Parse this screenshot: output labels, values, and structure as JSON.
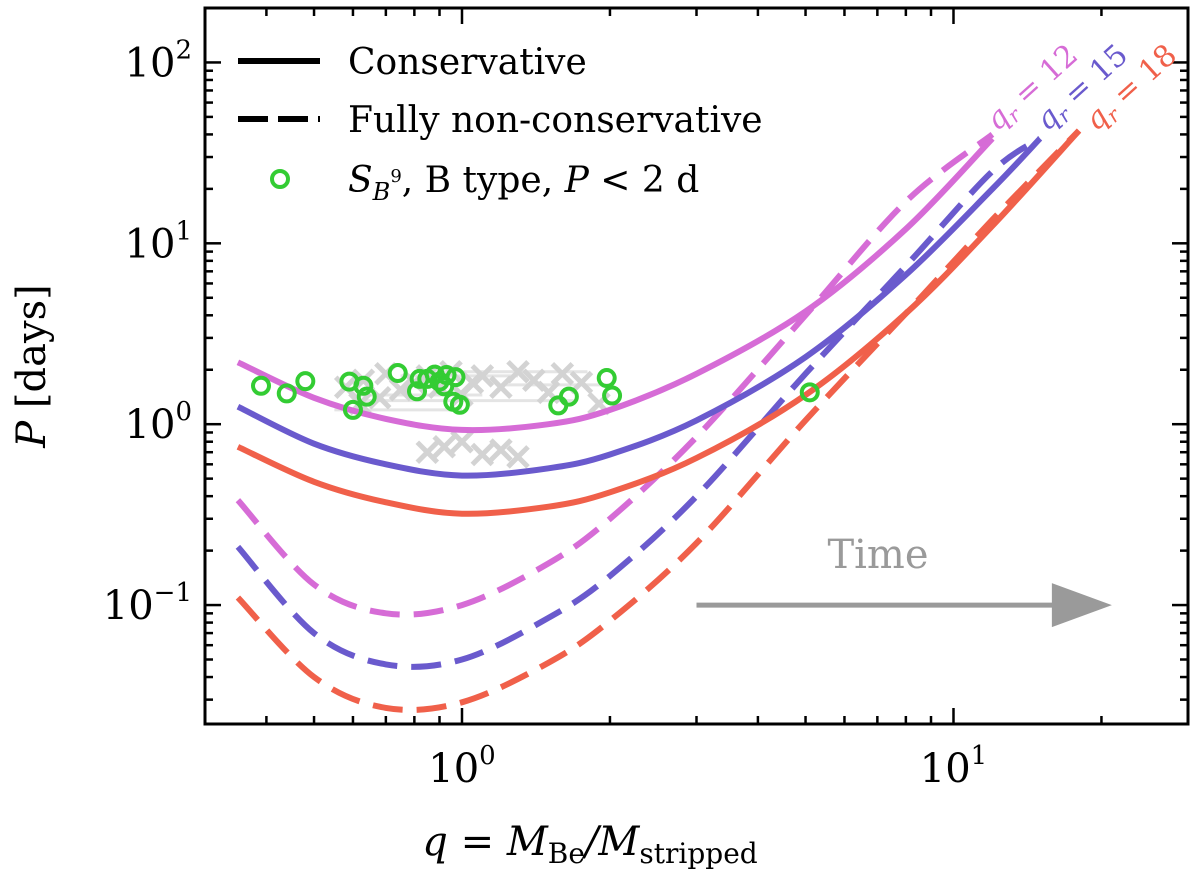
{
  "chart_data": {
    "type": "line",
    "title": "",
    "xlabel_parts": {
      "base": "q = M",
      "sub1": "Be",
      "slash": "/M",
      "sub2": "stripped"
    },
    "ylabel_parts": {
      "var": "P",
      "unit": " [days]"
    },
    "xscale": "log",
    "yscale": "log",
    "xlim": [
      0.3,
      30
    ],
    "ylim": [
      0.022,
      200
    ],
    "x_ticks": [
      {
        "value": 1,
        "base": "10",
        "exp": "0"
      },
      {
        "value": 10,
        "base": "10",
        "exp": "1"
      }
    ],
    "y_ticks": [
      {
        "value": 0.1,
        "base": "10",
        "exp": "−1"
      },
      {
        "value": 1,
        "base": "10",
        "exp": "0"
      },
      {
        "value": 10,
        "base": "10",
        "exp": "1"
      },
      {
        "value": 100,
        "base": "10",
        "exp": "2"
      }
    ],
    "legend": {
      "placement": "top-left",
      "entries": [
        {
          "style": "solid",
          "label": "Conservative"
        },
        {
          "style": "dashed",
          "label": "Fully non-conservative"
        },
        {
          "style": "marker",
          "label_parts": {
            "s": "S",
            "sub": "B",
            "sup": "9",
            "rest": ", B type, ",
            "p": "P",
            "cond": " < 2 d"
          }
        }
      ]
    },
    "series": [
      {
        "name": "qr = 12 conservative",
        "qr": 12,
        "color": "#d66cd6",
        "style": "solid",
        "x": [
          0.35,
          0.5,
          0.7,
          1.0,
          1.5,
          2.0,
          3.0,
          5.0,
          8.0,
          12.0
        ],
        "y": [
          2.2,
          1.4,
          1.07,
          0.93,
          1.0,
          1.2,
          1.9,
          4.2,
          12.0,
          38.0
        ]
      },
      {
        "name": "qr = 15 conservative",
        "qr": 15,
        "color": "#6a5acd",
        "style": "solid",
        "x": [
          0.35,
          0.5,
          0.7,
          1.0,
          1.5,
          2.0,
          3.0,
          5.0,
          8.0,
          12.0,
          15.0
        ],
        "y": [
          1.25,
          0.78,
          0.6,
          0.52,
          0.57,
          0.68,
          1.05,
          2.35,
          6.7,
          20.0,
          38.0
        ]
      },
      {
        "name": "qr = 18 conservative",
        "qr": 18,
        "color": "#f0604a",
        "style": "solid",
        "x": [
          0.35,
          0.5,
          0.7,
          1.0,
          1.5,
          2.0,
          3.0,
          5.0,
          8.0,
          12.0,
          18.0
        ],
        "y": [
          0.75,
          0.48,
          0.37,
          0.32,
          0.35,
          0.42,
          0.65,
          1.45,
          4.1,
          12.5,
          42.0
        ]
      },
      {
        "name": "qr = 12 non-conservative",
        "qr": 12,
        "color": "#d66cd6",
        "style": "dashed",
        "x": [
          0.35,
          0.5,
          0.7,
          1.0,
          1.5,
          2.0,
          3.0,
          5.0,
          8.0,
          12.0
        ],
        "y": [
          0.38,
          0.13,
          0.09,
          0.1,
          0.17,
          0.3,
          0.85,
          4.0,
          17.0,
          40.0
        ]
      },
      {
        "name": "qr = 15 non-conservative",
        "qr": 15,
        "color": "#6a5acd",
        "style": "dashed",
        "x": [
          0.35,
          0.5,
          0.7,
          1.0,
          1.5,
          2.0,
          3.0,
          5.0,
          8.0,
          12.0,
          15.0
        ],
        "y": [
          0.21,
          0.07,
          0.047,
          0.05,
          0.085,
          0.145,
          0.4,
          1.9,
          7.5,
          25.0,
          38.0
        ]
      },
      {
        "name": "qr = 18 non-conservative",
        "qr": 18,
        "color": "#f0604a",
        "style": "dashed",
        "x": [
          0.35,
          0.5,
          0.7,
          1.0,
          1.5,
          2.0,
          3.0,
          5.0,
          8.0,
          12.0,
          18.0
        ],
        "y": [
          0.11,
          0.04,
          0.027,
          0.029,
          0.048,
          0.082,
          0.22,
          1.05,
          4.1,
          13.5,
          42.0
        ]
      }
    ],
    "gray_segments": [
      {
        "x1": 0.55,
        "x2": 1.0,
        "y": 1.2
      },
      {
        "x1": 0.6,
        "x2": 1.1,
        "y": 1.45
      },
      {
        "x1": 0.75,
        "x2": 1.3,
        "y": 1.85
      },
      {
        "x1": 0.85,
        "x2": 1.8,
        "y": 1.95
      },
      {
        "x1": 1.2,
        "x2": 2.0,
        "y": 1.65
      },
      {
        "x1": 0.6,
        "x2": 1.7,
        "y": 1.35
      }
    ],
    "gray_crosses": {
      "color": "#d3d3d3",
      "x": [
        0.58,
        0.63,
        0.7,
        0.75,
        0.8,
        0.85,
        0.9,
        0.95,
        1.0,
        1.05,
        1.1,
        1.2,
        1.3,
        1.4,
        1.5,
        1.6,
        1.75,
        1.9,
        0.85,
        0.92,
        1.0,
        1.1,
        1.2,
        1.3,
        0.62,
        0.68
      ],
      "y": [
        1.6,
        1.75,
        1.9,
        1.55,
        1.7,
        1.85,
        1.6,
        1.95,
        1.45,
        1.7,
        1.85,
        1.6,
        1.95,
        1.75,
        1.5,
        1.9,
        1.7,
        1.3,
        0.7,
        0.75,
        0.8,
        0.68,
        0.72,
        0.66,
        1.3,
        1.4
      ]
    },
    "sb9_points": {
      "color": "#33cc33",
      "x": [
        0.39,
        0.44,
        0.48,
        0.59,
        0.6,
        0.63,
        0.64,
        0.74,
        0.81,
        0.82,
        0.85,
        0.88,
        0.9,
        0.92,
        0.93,
        0.96,
        0.97,
        0.99,
        1.57,
        1.65,
        1.97,
        2.02,
        5.1
      ],
      "y": [
        1.63,
        1.48,
        1.73,
        1.72,
        1.2,
        1.63,
        1.42,
        1.92,
        1.52,
        1.78,
        1.78,
        1.88,
        1.72,
        1.62,
        1.87,
        1.33,
        1.82,
        1.28,
        1.27,
        1.42,
        1.8,
        1.44,
        1.5
      ]
    },
    "qr_labels": [
      {
        "qr": 12,
        "text_q": "q",
        "text_sub": "r",
        "text_val": " = 12",
        "color": "#d66cd6"
      },
      {
        "qr": 15,
        "text_q": "q",
        "text_sub": "r",
        "text_val": " = 15",
        "color": "#6a5acd"
      },
      {
        "qr": 18,
        "text_q": "q",
        "text_sub": "r",
        "text_val": " = 18",
        "color": "#f0604a"
      }
    ],
    "annotation": {
      "text": "Time",
      "arrow_from_x": 3.0,
      "arrow_to_x": 21.0,
      "arrow_y": 0.1,
      "color": "#9a9a9a"
    }
  }
}
